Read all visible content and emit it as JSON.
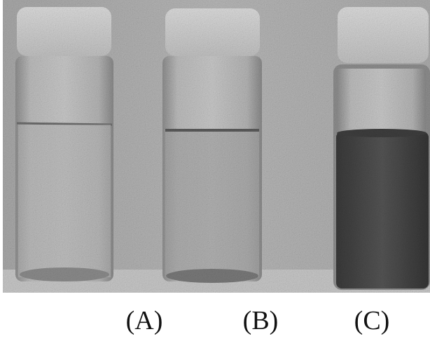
{
  "figure": {
    "labels": [
      "(A)",
      "(B)",
      "(C)"
    ]
  },
  "colors": {
    "background": "#b3b3b3",
    "glass": "#c4c4c4",
    "cap": "#d2d2d2",
    "dark_liquid": "#4a4a4a"
  }
}
